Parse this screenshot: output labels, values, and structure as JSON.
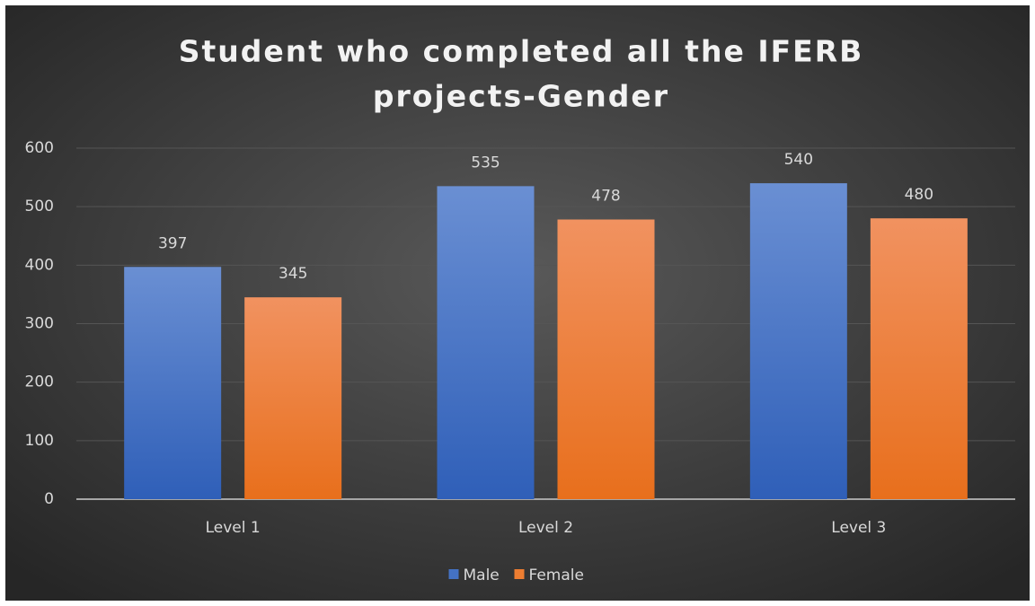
{
  "chart_data": {
    "type": "bar",
    "title": [
      "Student who completed all the IFERB",
      "projects-Gender"
    ],
    "categories": [
      "Level 1",
      "Level 2",
      "Level 3"
    ],
    "series": [
      {
        "name": "Male",
        "color": "#4472c4",
        "values": [
          397,
          535,
          540
        ]
      },
      {
        "name": "Female",
        "color": "#ed7d31",
        "values": [
          345,
          478,
          480
        ]
      }
    ],
    "ylim": [
      0,
      600
    ],
    "yticks": [
      0,
      100,
      200,
      300,
      400,
      500,
      600
    ],
    "grid": true,
    "legend": "bottom"
  }
}
